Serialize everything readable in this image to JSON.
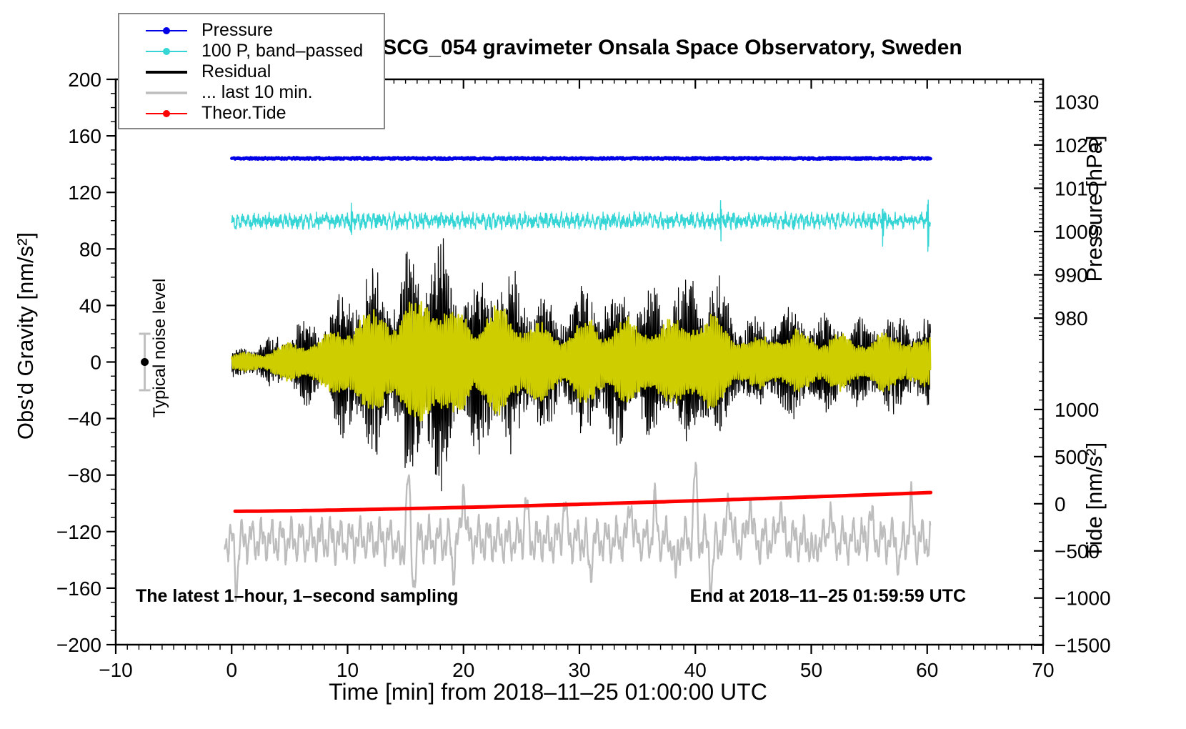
{
  "title": "SCG_054 gravimeter Onsala Space Observatory, Sweden",
  "annotations": {
    "sampling_note": "The latest 1–hour, 1–second sampling",
    "end_note": "End at 2018–11–25 01:59:59 UTC"
  },
  "legend": {
    "items": [
      {
        "label": "Pressure",
        "color": "#0000e6",
        "line_width": 2,
        "marker": "circle"
      },
      {
        "label": "100 P, band–passed",
        "color": "#35d5d5",
        "line_width": 2,
        "marker": "circle"
      },
      {
        "label": "Residual",
        "color": "#000000",
        "line_width": 4,
        "marker": "none"
      },
      {
        "label": "... last 10 min.",
        "color": "#bdbdbd",
        "line_width": 3.5,
        "marker": "none"
      },
      {
        "label": "Theor.Tide",
        "color": "#ff0000",
        "line_width": 2,
        "marker": "circle"
      }
    ]
  },
  "axes": {
    "x": {
      "label": "Time [min] from 2018–11–25 01:00:00 UTC",
      "min": -10,
      "max": 70,
      "major_step": 10,
      "minor_step": 1,
      "major_ticks": [
        -10,
        0,
        10,
        20,
        30,
        40,
        50,
        60,
        70
      ]
    },
    "gravity": {
      "label": "Obs'd Gravity [nm/s²]",
      "min": -200,
      "max": 200,
      "major_step": 40,
      "minor_step": 10,
      "major_ticks": [
        -200,
        -160,
        -120,
        -80,
        -40,
        0,
        40,
        80,
        120,
        160,
        200
      ]
    },
    "pressure": {
      "label": "Pressure [hPa]",
      "major_ticks": [
        980,
        990,
        1000,
        1010,
        1020,
        1030
      ],
      "minor_step": 1,
      "minor_min": 975,
      "minor_max": 1035,
      "gravity_at_1000": 92.3,
      "gravity_per_hpa": 3.063
    },
    "tide": {
      "label": "Tide [nm/s²]",
      "major_ticks": [
        -1500,
        -1000,
        -500,
        0,
        500,
        1000
      ],
      "minor_step": 100,
      "minor_min": -1500,
      "minor_max": 1500,
      "gravity_at_zero": -100.3,
      "gravity_per_unit": 0.0667
    }
  },
  "chart_data": {
    "type": "line",
    "title": "SCG_054 gravimeter Onsala Space Observatory, Sweden",
    "xlabel": "Time [min] from 2018–11–25 01:00:00 UTC",
    "x_range": [
      -10,
      70
    ],
    "grid": false,
    "legend_position": "top-left",
    "series": [
      {
        "id": "pressure",
        "name": "Pressure",
        "color": "#0000e6",
        "axis": "pressure",
        "x_span": [
          0,
          60.3
        ],
        "mean_hPa": 1016.9,
        "noise_hPa": 0.4,
        "line_width": 4.5
      },
      {
        "id": "band_passed",
        "name": "100 P, band–passed",
        "color": "#35d5d5",
        "axis": "gravity",
        "x_span": [
          0,
          60.3
        ],
        "center": 100,
        "wave_amp": 2.4,
        "wave_period_min": 0.45,
        "noise_amp": 4.2,
        "spike_prob": 0.005,
        "spike_amp_min": 10,
        "spike_amp_max": 25,
        "line_width": 1.4
      },
      {
        "id": "residual",
        "name": "Residual",
        "color": "#000000",
        "axis": "gravity",
        "x_span": [
          0,
          60.3
        ],
        "center": 0,
        "carrier_period_min": 0.105,
        "noise_frac": 0.32,
        "line_width": 1.2,
        "envelope": [
          [
            0,
            9
          ],
          [
            1,
            12
          ],
          [
            2,
            13
          ],
          [
            3,
            15
          ],
          [
            4,
            20
          ],
          [
            5,
            26
          ],
          [
            6,
            29
          ],
          [
            7,
            31
          ],
          [
            8,
            34
          ],
          [
            9,
            42
          ],
          [
            10,
            58
          ],
          [
            11,
            66
          ],
          [
            12,
            62
          ],
          [
            13,
            70
          ],
          [
            14,
            63
          ],
          [
            15,
            76
          ],
          [
            16,
            80
          ],
          [
            17,
            95
          ],
          [
            18,
            90
          ],
          [
            19,
            62
          ],
          [
            20,
            64
          ],
          [
            21,
            56
          ],
          [
            22,
            72
          ],
          [
            23,
            76
          ],
          [
            24,
            62
          ],
          [
            25,
            60
          ],
          [
            26,
            54
          ],
          [
            27,
            47
          ],
          [
            28,
            42
          ],
          [
            29,
            44
          ],
          [
            30,
            52
          ],
          [
            31,
            56
          ],
          [
            32,
            50
          ],
          [
            33,
            54
          ],
          [
            34,
            58
          ],
          [
            35,
            52
          ],
          [
            36,
            54
          ],
          [
            37,
            50
          ],
          [
            38,
            54
          ],
          [
            39,
            60
          ],
          [
            40,
            70
          ],
          [
            41,
            62
          ],
          [
            42,
            56
          ],
          [
            43,
            46
          ],
          [
            44,
            33
          ],
          [
            45,
            30
          ],
          [
            46,
            35
          ],
          [
            47,
            42
          ],
          [
            48,
            38
          ],
          [
            49,
            42
          ],
          [
            50,
            38
          ],
          [
            51,
            34
          ],
          [
            52,
            40
          ],
          [
            53,
            32
          ],
          [
            54,
            30
          ],
          [
            55,
            34
          ],
          [
            56,
            38
          ],
          [
            57,
            34
          ],
          [
            58,
            38
          ],
          [
            59,
            33
          ],
          [
            60,
            30
          ]
        ]
      },
      {
        "id": "residual_band_overlay",
        "name": "band-passed residual overlay (unlabeled)",
        "color": "#cdcd00",
        "axis": "gravity",
        "x_span": [
          0,
          60.3
        ],
        "center": 0,
        "envelope_scale": 0.55,
        "carrier_period_min": 0.17,
        "noise_frac": 0.15,
        "line_width": 2.2
      },
      {
        "id": "last10",
        "name": "... last 10 min.",
        "color": "#bdbdbd",
        "axis": "gravity",
        "x_span": [
          -0.6,
          60.3
        ],
        "center": -126,
        "wave1_amp": 9,
        "wave1_period": 0.85,
        "wave2_amp": 7,
        "wave2_period": 0.33,
        "noise_amp": 3,
        "line_width": 2.4,
        "peaks": [
          [
            15.2,
            45
          ],
          [
            20.0,
            42
          ],
          [
            25.4,
            26
          ],
          [
            28.7,
            28
          ],
          [
            34.4,
            32
          ],
          [
            36.5,
            26
          ],
          [
            40.0,
            48
          ],
          [
            42.9,
            36
          ],
          [
            44.7,
            30
          ],
          [
            47.3,
            30
          ],
          [
            51.6,
            22
          ],
          [
            55.1,
            18
          ],
          [
            58.6,
            24
          ]
        ],
        "dips": [
          [
            0.4,
            -30
          ],
          [
            14.6,
            -18
          ],
          [
            15.7,
            -30
          ],
          [
            19.1,
            -20
          ],
          [
            30.9,
            -22
          ],
          [
            38.3,
            -26
          ],
          [
            41.4,
            -32
          ],
          [
            50.2,
            -16
          ],
          [
            57.6,
            -18
          ]
        ]
      },
      {
        "id": "tide",
        "name": "Theor.Tide",
        "color": "#ff0000",
        "axis": "tide",
        "x_span": [
          0.3,
          60.5
        ],
        "start_value": -80,
        "end_value": 120,
        "exponent": 1.4,
        "line_width": 5
      }
    ],
    "noise_marker": {
      "x": -7.5,
      "center": 0,
      "half_range": 20,
      "label": "Typical noise level",
      "bar_color": "#c0c0c0",
      "dot_color": "#000000"
    }
  }
}
